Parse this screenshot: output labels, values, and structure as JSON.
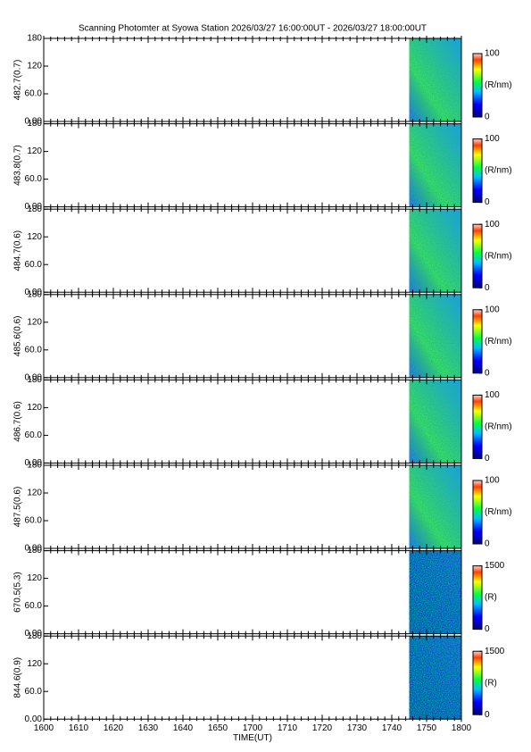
{
  "title": "Scanning Photomter at Syowa Station  2026/03/27 16:00:00UT - 2026/03/27 18:00:00UT",
  "xaxis": {
    "xlabel": "TIME(UT)",
    "xlim": [
      0,
      120
    ],
    "xticks": [
      {
        "value": 0,
        "label": "1600"
      },
      {
        "value": 10,
        "label": "1610"
      },
      {
        "value": 20,
        "label": "1620"
      },
      {
        "value": 30,
        "label": "1630"
      },
      {
        "value": 40,
        "label": "1640"
      },
      {
        "value": 50,
        "label": "1650"
      },
      {
        "value": 60,
        "label": "1700"
      },
      {
        "value": 70,
        "label": "1710"
      },
      {
        "value": 80,
        "label": "1720"
      },
      {
        "value": 90,
        "label": "1730"
      },
      {
        "value": 100,
        "label": "1740"
      },
      {
        "value": 110,
        "label": "1750"
      },
      {
        "value": 120,
        "label": "1800"
      }
    ]
  },
  "chart_data": [
    {
      "type": "heatmap",
      "ylabel": "482.7(0.7)",
      "ylim": [
        0,
        180
      ],
      "yticks": [
        {
          "value": 0,
          "label": "0.00"
        },
        {
          "value": 60,
          "label": "60.0"
        },
        120,
        180
      ],
      "data_xrange": [
        105,
        120
      ],
      "colorbar": {
        "ticks": [
          0,
          100
        ],
        "unit": "(R/nm)"
      }
    },
    {
      "type": "heatmap",
      "ylabel": "483.8(0.7)",
      "ylim": [
        0,
        180
      ],
      "yticks": [
        {
          "value": 0,
          "label": "0.00"
        },
        {
          "value": 60,
          "label": "60.0"
        },
        120,
        180
      ],
      "data_xrange": [
        105,
        120
      ],
      "colorbar": {
        "ticks": [
          0,
          100
        ],
        "unit": "(R/nm)"
      }
    },
    {
      "type": "heatmap",
      "ylabel": "484.7(0.6)",
      "ylim": [
        0,
        180
      ],
      "yticks": [
        {
          "value": 0,
          "label": "0.00"
        },
        {
          "value": 60,
          "label": "60.0"
        },
        120,
        180
      ],
      "data_xrange": [
        105,
        120
      ],
      "colorbar": {
        "ticks": [
          0,
          100
        ],
        "unit": "(R/nm)"
      }
    },
    {
      "type": "heatmap",
      "ylabel": "485.6(0.6)",
      "ylim": [
        0,
        180
      ],
      "yticks": [
        {
          "value": 0,
          "label": "0.00"
        },
        {
          "value": 60,
          "label": "60.0"
        },
        120,
        180
      ],
      "data_xrange": [
        105,
        120
      ],
      "colorbar": {
        "ticks": [
          0,
          100
        ],
        "unit": "(R/nm)"
      }
    },
    {
      "type": "heatmap",
      "ylabel": "486.7(0.6)",
      "ylim": [
        0,
        180
      ],
      "yticks": [
        {
          "value": 0,
          "label": "0.00"
        },
        {
          "value": 60,
          "label": "60.0"
        },
        120,
        180
      ],
      "data_xrange": [
        105,
        120
      ],
      "colorbar": {
        "ticks": [
          0,
          100
        ],
        "unit": "(R/nm)"
      }
    },
    {
      "type": "heatmap",
      "ylabel": "487.5(0.6)",
      "ylim": [
        0,
        180
      ],
      "yticks": [
        {
          "value": 0,
          "label": "0.00"
        },
        {
          "value": 60,
          "label": "60.0"
        },
        120,
        180
      ],
      "data_xrange": [
        105,
        120
      ],
      "colorbar": {
        "ticks": [
          0,
          100
        ],
        "unit": "(R/nm)"
      }
    },
    {
      "type": "heatmap",
      "ylabel": "670.5(5.3)",
      "ylim": [
        0,
        180
      ],
      "yticks": [
        {
          "value": 0,
          "label": "0.00"
        },
        {
          "value": 60,
          "label": "60.0"
        },
        120,
        180
      ],
      "data_xrange": [
        105,
        120
      ],
      "colorbar": {
        "ticks": [
          0,
          1500
        ],
        "unit": "(R)"
      }
    },
    {
      "type": "heatmap",
      "ylabel": "844.6(0.9)",
      "ylim": [
        0,
        180
      ],
      "yticks": [
        {
          "value": 0,
          "label": "0.00"
        },
        {
          "value": 60,
          "label": "60.0"
        },
        120,
        180
      ],
      "data_xrange": [
        105,
        120
      ],
      "colorbar": {
        "ticks": [
          0,
          1500
        ],
        "unit": "(R)"
      }
    }
  ]
}
